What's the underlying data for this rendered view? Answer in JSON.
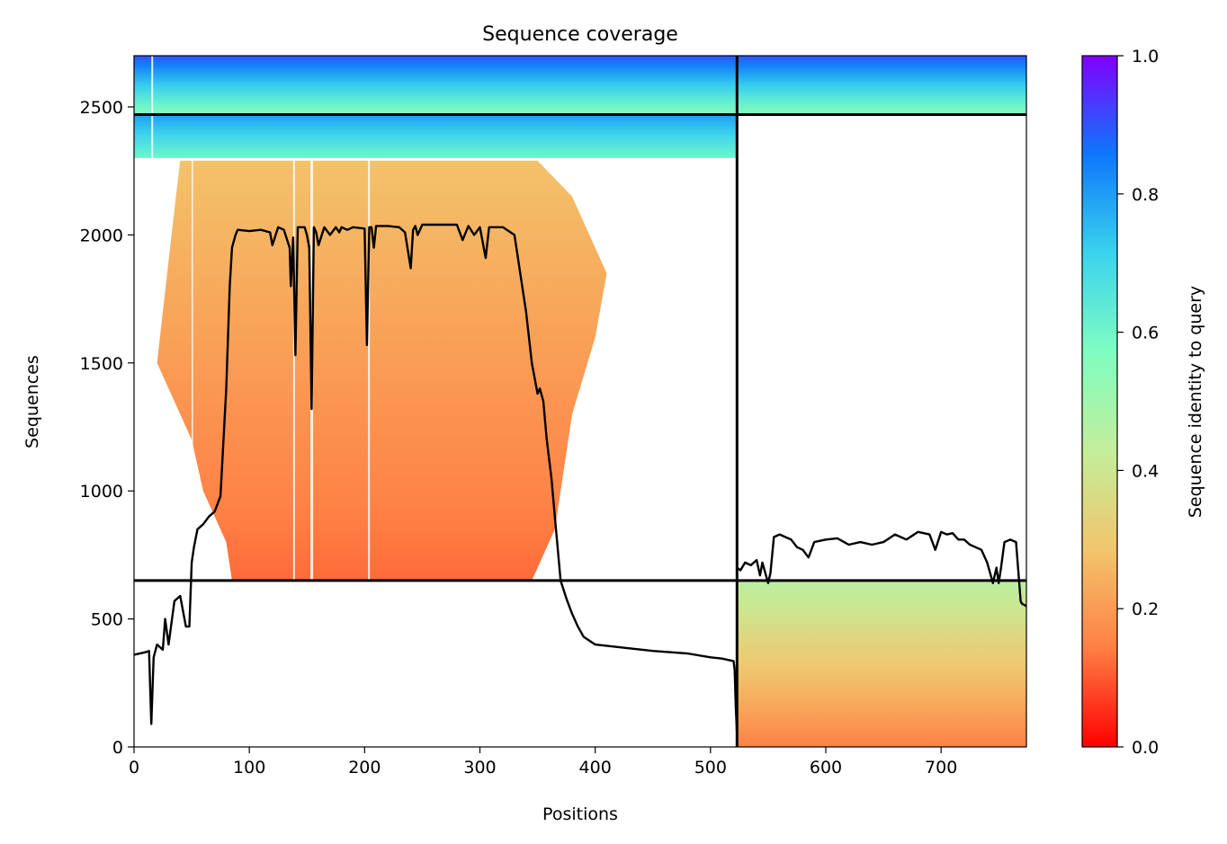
{
  "chart_data": {
    "type": "heatmap",
    "title": "Sequence coverage",
    "xlabel": "Positions",
    "ylabel": "Sequences",
    "xlim": [
      0,
      774
    ],
    "ylim": [
      0,
      2700
    ],
    "x_ticks": [
      0,
      100,
      200,
      300,
      400,
      500,
      600,
      700
    ],
    "y_ticks": [
      0,
      500,
      1000,
      1500,
      2000,
      2500
    ],
    "colorbar": {
      "label": "Sequence identity to query",
      "range": [
        0,
        1
      ],
      "ticks": [
        "0.0",
        "0.2",
        "0.4",
        "0.6",
        "0.8",
        "1.0"
      ],
      "colormap": "rainbow",
      "colors": [
        "#ff0000",
        "#ff7f44",
        "#f2c56c",
        "#c3ee9a",
        "#7ffdc1",
        "#3ad3ed",
        "#0d78fb",
        "#8000ff"
      ]
    },
    "chain_break_position": 523,
    "block_boundaries_sequences": [
      650,
      2470
    ],
    "blocks": [
      {
        "sequences": [
          2470,
          2700
        ],
        "positions": [
          0,
          774
        ],
        "identity_range": [
          0.55,
          0.9
        ]
      },
      {
        "sequences": [
          2290,
          2470
        ],
        "positions": [
          0,
          523
        ],
        "identity_range": [
          0.6,
          0.8
        ]
      },
      {
        "sequences": [
          650,
          2290
        ],
        "positions": [
          20,
          420
        ],
        "identity_range": [
          0.12,
          0.28
        ]
      },
      {
        "sequences": [
          0,
          650
        ],
        "positions": [
          523,
          774
        ],
        "identity_range": [
          0.15,
          0.45
        ]
      }
    ],
    "series": [
      {
        "x": [
          0,
          10,
          13,
          15,
          17,
          20,
          25,
          27,
          30,
          35,
          40,
          45,
          48,
          50,
          52,
          55,
          60,
          65,
          70,
          75,
          80,
          83,
          85,
          88,
          90,
          100,
          110,
          118,
          120,
          125,
          130,
          135,
          136,
          138,
          140,
          142,
          148,
          150,
          152,
          154,
          156,
          158,
          160,
          165,
          170,
          175,
          178,
          180,
          185,
          190,
          200,
          202,
          204,
          206,
          208,
          210,
          220,
          230,
          235,
          240,
          242,
          244,
          246,
          250,
          260,
          270,
          280,
          285,
          290,
          295,
          300,
          305,
          308,
          310,
          320,
          330,
          340,
          345,
          350,
          352,
          355,
          358,
          362,
          365,
          370,
          375,
          380,
          385,
          390,
          400,
          420,
          450,
          480,
          500,
          510,
          520,
          521,
          522,
          523
        ],
        "y": [
          360,
          370,
          375,
          90,
          350,
          400,
          380,
          500,
          400,
          570,
          590,
          470,
          470,
          720,
          780,
          850,
          870,
          900,
          920,
          980,
          1400,
          1800,
          1950,
          2000,
          2020,
          2015,
          2020,
          2010,
          1960,
          2030,
          2020,
          1950,
          1800,
          1990,
          1530,
          2030,
          2030,
          2000,
          1950,
          1320,
          2030,
          2010,
          1960,
          2030,
          2000,
          2030,
          2010,
          2030,
          2020,
          2030,
          2025,
          1570,
          2030,
          2030,
          1950,
          2035,
          2035,
          2030,
          2010,
          1870,
          2020,
          2035,
          2000,
          2040,
          2040,
          2040,
          2040,
          1980,
          2035,
          2000,
          2030,
          1910,
          2030,
          2030,
          2030,
          2000,
          1700,
          1500,
          1380,
          1400,
          1350,
          1200,
          1050,
          900,
          650,
          580,
          520,
          470,
          430,
          400,
          390,
          375,
          365,
          350,
          345,
          335,
          300,
          150,
          50
        ]
      },
      {
        "x": [
          523,
          526,
          530,
          535,
          540,
          543,
          545,
          550,
          552,
          555,
          560,
          565,
          570,
          575,
          580,
          585,
          590,
          600,
          610,
          620,
          630,
          640,
          650,
          660,
          670,
          680,
          690,
          695,
          700,
          705,
          710,
          715,
          720,
          725,
          730,
          735,
          740,
          745,
          748,
          750,
          752,
          755,
          760,
          765,
          769,
          770,
          774
        ],
        "y": [
          700,
          690,
          720,
          710,
          730,
          670,
          720,
          640,
          680,
          820,
          830,
          820,
          810,
          780,
          770,
          740,
          800,
          810,
          815,
          790,
          800,
          790,
          800,
          830,
          810,
          840,
          830,
          770,
          840,
          830,
          835,
          810,
          810,
          790,
          780,
          770,
          720,
          640,
          700,
          640,
          700,
          800,
          810,
          800,
          570,
          560,
          550
        ]
      }
    ]
  }
}
